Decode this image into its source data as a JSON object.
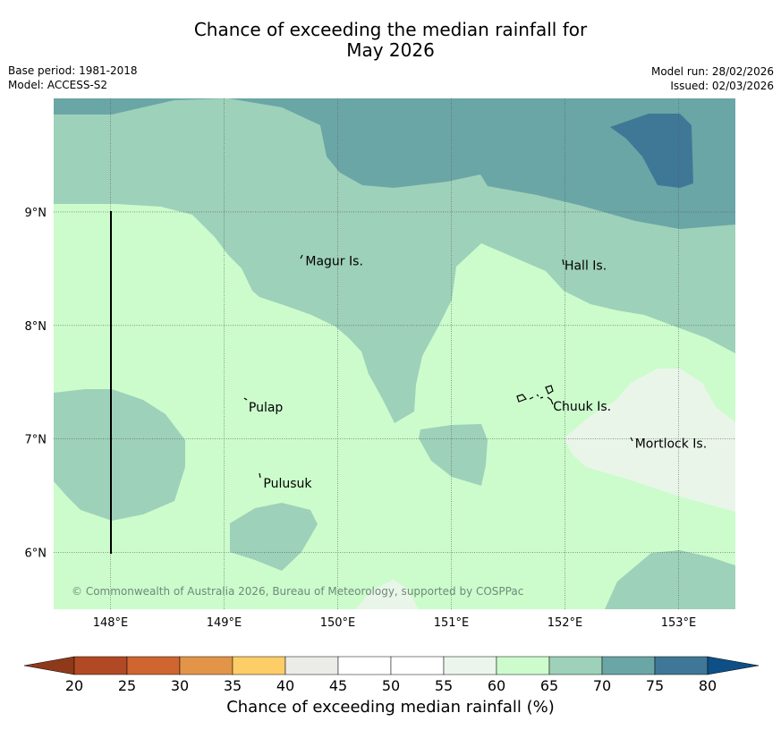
{
  "header": {
    "title_line1": "Chance of exceeding the median rainfall for",
    "title_line2": "May 2026",
    "base_period": "Base period: 1981-2018",
    "model": "Model: ACCESS-S2",
    "model_run": "Model run: 28/02/2026",
    "issued": "Issued: 02/03/2026"
  },
  "map": {
    "extent": {
      "lon": [
        147.5,
        153.5
      ],
      "lat": [
        5.5,
        10.0
      ]
    },
    "lon_ticks": [
      {
        "value": 148,
        "label": "148°E"
      },
      {
        "value": 149,
        "label": "149°E"
      },
      {
        "value": 150,
        "label": "150°E"
      },
      {
        "value": 151,
        "label": "151°E"
      },
      {
        "value": 152,
        "label": "152°E"
      },
      {
        "value": 153,
        "label": "153°E"
      }
    ],
    "lat_ticks": [
      {
        "value": 9,
        "label": "9°N"
      },
      {
        "value": 8,
        "label": "8°N"
      },
      {
        "value": 7,
        "label": "7°N"
      },
      {
        "value": 6,
        "label": "6°N"
      }
    ],
    "places": [
      {
        "name": "Magur Is.",
        "lon": 149.7,
        "lat": 8.57
      },
      {
        "name": "Hall Is.",
        "lon": 151.98,
        "lat": 8.53
      },
      {
        "name": "Pulap",
        "lon": 149.2,
        "lat": 7.28
      },
      {
        "name": "Chuuk Is.",
        "lon": 151.88,
        "lat": 7.29
      },
      {
        "name": "Mortlock Is.",
        "lon": 152.6,
        "lat": 6.96
      },
      {
        "name": "Pulusuk",
        "lon": 149.33,
        "lat": 6.61
      }
    ],
    "copyright": "© Commonwealth of Australia 2026, Bureau of Meteorology, supported by COSPPac",
    "colors": {
      "background": "#ccfccc",
      "c55_60": "#eaf5ea",
      "c65_70": "#9ed1b9",
      "c70_75": "#6ba6a6",
      "c75_80": "#3f7896"
    }
  },
  "colorbar": {
    "title": "Chance of exceeding median rainfall (%)",
    "ticks": [
      "20",
      "25",
      "30",
      "35",
      "40",
      "45",
      "50",
      "55",
      "60",
      "65",
      "70",
      "75",
      "80"
    ],
    "under_color": "#8e3a1a",
    "over_color": "#0e4f87",
    "segments": [
      "#b14a24",
      "#cf6531",
      "#e29548",
      "#fdcd67",
      "#ebebe7",
      "#ffffff",
      "#ffffff",
      "#ebf5eb",
      "#ccfccc",
      "#9ed1b9",
      "#6ba6a6",
      "#3f7896"
    ]
  }
}
